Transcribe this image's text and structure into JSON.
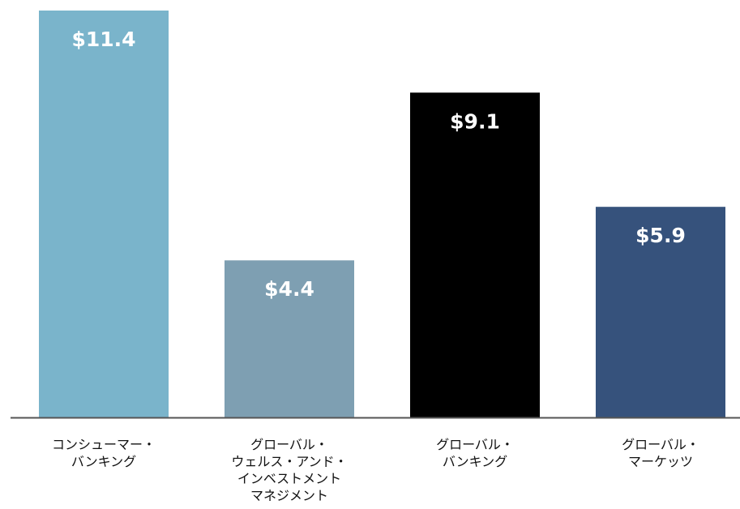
{
  "chart_data": {
    "type": "bar",
    "title": "",
    "xlabel": "",
    "ylabel": "",
    "ylim": [
      0,
      11.4
    ],
    "grid": false,
    "legend": "none",
    "categories": [
      "コンシューマー・\nバンキング",
      "グローバル・\nウェルス・アンド・\nインベストメント\nマネジメント",
      "グローバル・\nバンキング",
      "グローバル・\nマーケッツ"
    ],
    "values": [
      11.4,
      4.4,
      9.1,
      5.9
    ],
    "value_labels": [
      "$11.4",
      "$4.4",
      "$9.1",
      "$5.9"
    ],
    "colors": [
      "#7ab4cb",
      "#7e9fb2",
      "#000000",
      "#36527c"
    ],
    "label_color": "#ffffff",
    "axis_color": "#555555"
  }
}
